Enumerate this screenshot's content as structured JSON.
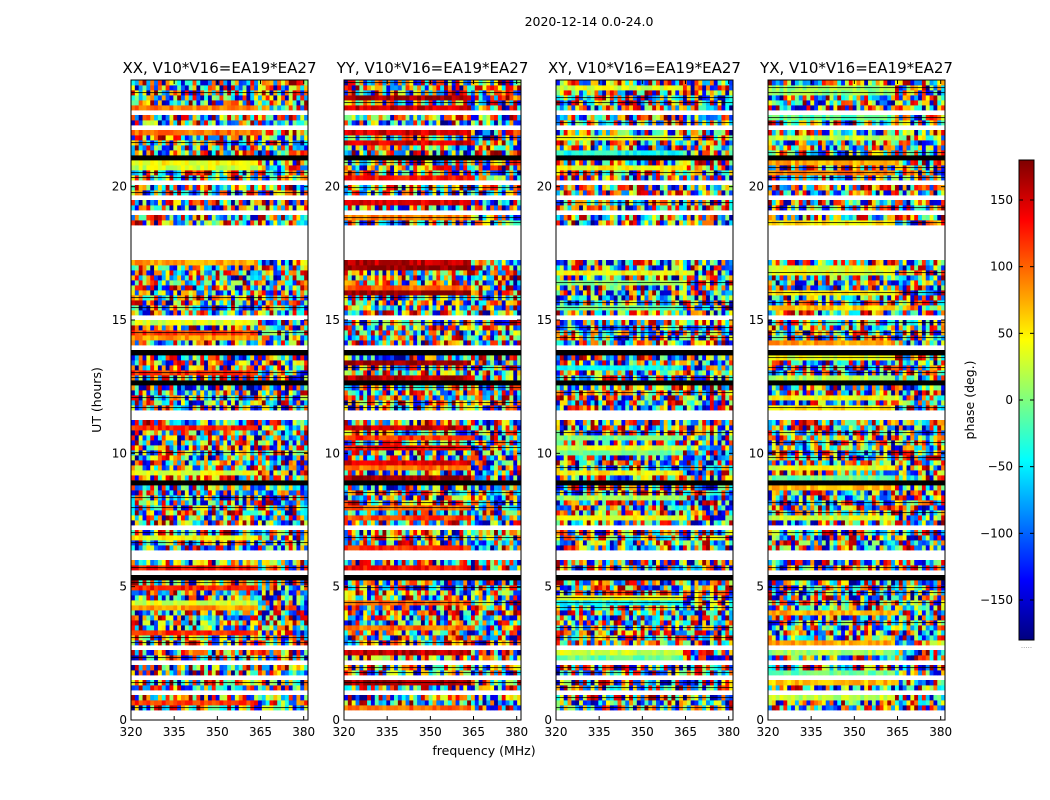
{
  "chart_data": {
    "type": "heatmap",
    "suptitle": "2020-12-14 0.0-24.0",
    "xlabel": "frequency (MHz)",
    "ylabel": "UT (hours)",
    "xlim": [
      320,
      381.5
    ],
    "ylim": [
      0,
      24
    ],
    "xticks": [
      320,
      335,
      350,
      365,
      380
    ],
    "yticks": [
      0,
      5,
      10,
      15,
      20
    ],
    "panels": [
      {
        "title": "XX, V10*V16=EA19*EA27",
        "pol": "XX"
      },
      {
        "title": "YY, V10*V16=EA19*EA27",
        "pol": "YY"
      },
      {
        "title": "XY, V10*V16=EA19*EA27",
        "pol": "XY"
      },
      {
        "title": "YX, V10*V16=EA19*EA27",
        "pol": "YX"
      }
    ],
    "flagged_gaps_hours": [
      [
        17.3,
        18.6
      ],
      [
        11.2,
        11.6
      ],
      [
        6.1,
        6.4
      ],
      [
        22.6,
        22.8
      ],
      [
        15.0,
        15.15
      ],
      [
        1.5,
        1.6
      ]
    ],
    "colorbar": {
      "label": "phase (deg.)",
      "range": [
        -180,
        180
      ],
      "ticks": [
        -150,
        -100,
        -50,
        0,
        50,
        100,
        150
      ],
      "tick_labels": [
        "−150",
        "−100",
        "−50",
        "0",
        "50",
        "100",
        "150"
      ],
      "colormap": "jet",
      "colors": [
        "#00007f",
        "#0000ff",
        "#007fff",
        "#00ffff",
        "#7fff7f",
        "#ffff00",
        "#ff7f00",
        "#ff0000",
        "#7f0000"
      ],
      "footer": "....."
    }
  }
}
